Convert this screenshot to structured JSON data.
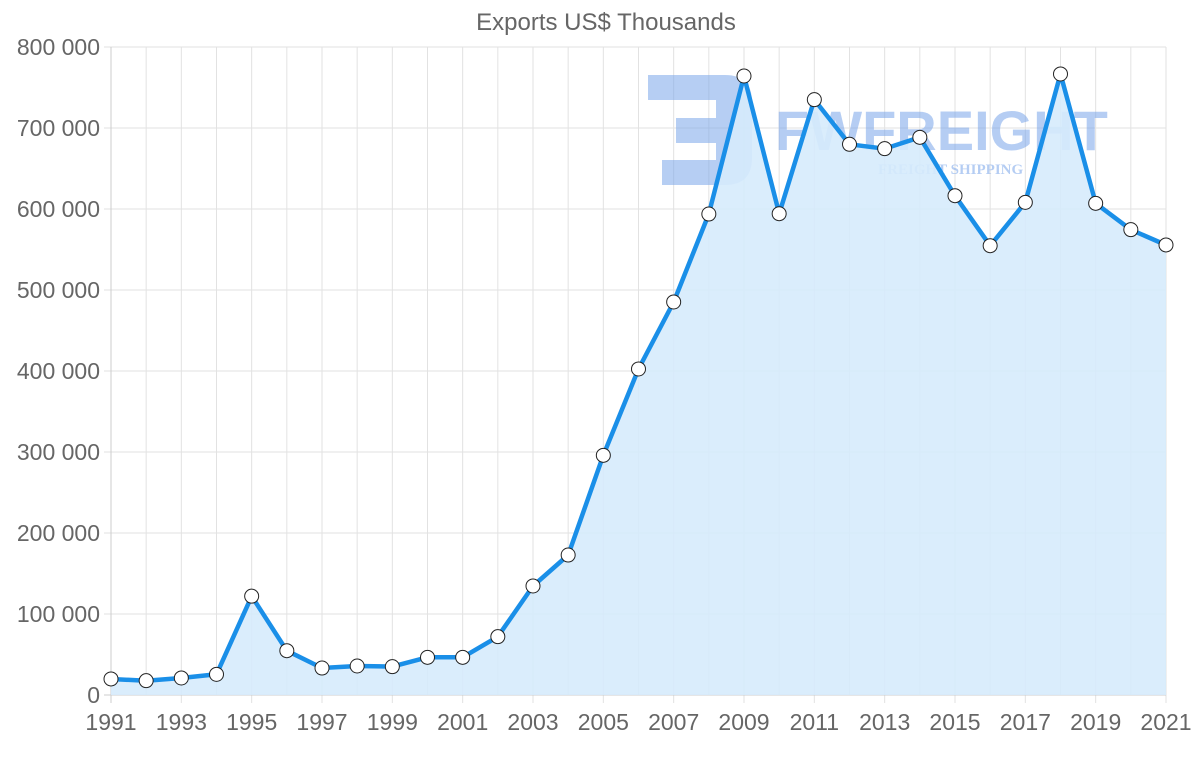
{
  "chart_data": {
    "type": "line",
    "title": "Exports US$ Thousands",
    "xlabel": "",
    "ylabel": "",
    "ylim": [
      0,
      800000
    ],
    "grid": true,
    "legend": null,
    "fill": true,
    "x": [
      1991,
      1992,
      1993,
      1994,
      1995,
      1996,
      1997,
      1998,
      1999,
      2000,
      2001,
      2002,
      2003,
      2004,
      2005,
      2006,
      2007,
      2008,
      2009,
      2010,
      2011,
      2012,
      2013,
      2014,
      2015,
      2016,
      2017,
      2018,
      2019,
      2020,
      2021
    ],
    "series": [
      {
        "name": "Exports US$ Thousands",
        "values": [
          19800,
          17700,
          21000,
          25500,
          122000,
          54700,
          33300,
          35800,
          35000,
          46500,
          46500,
          72000,
          134600,
          172800,
          295900,
          402500,
          485200,
          593800,
          764200,
          594200,
          735000,
          679900,
          674500,
          688500,
          616400,
          554700,
          608200,
          766700,
          607000,
          574500,
          555600
        ]
      }
    ],
    "y_ticks": [
      "0",
      "100 000",
      "200 000",
      "300 000",
      "400 000",
      "500 000",
      "600 000",
      "700 000",
      "800 000"
    ],
    "x_ticks": [
      "1991",
      "1993",
      "1995",
      "1997",
      "1999",
      "2001",
      "2003",
      "2005",
      "2007",
      "2009",
      "2011",
      "2013",
      "2015",
      "2017",
      "2019",
      "2021"
    ]
  },
  "colors": {
    "line": "#1a8fe8",
    "fill": "#d6ebfc",
    "grid": "#e2e2e2",
    "text": "#666666",
    "point_fill": "#ffffff",
    "point_stroke": "#222222",
    "watermark": "#7aa6ea"
  },
  "watermark": {
    "brand": "FWFREIGHT",
    "tagline": "FREIGHT SHIPPING",
    "logo_glyph": "E"
  }
}
